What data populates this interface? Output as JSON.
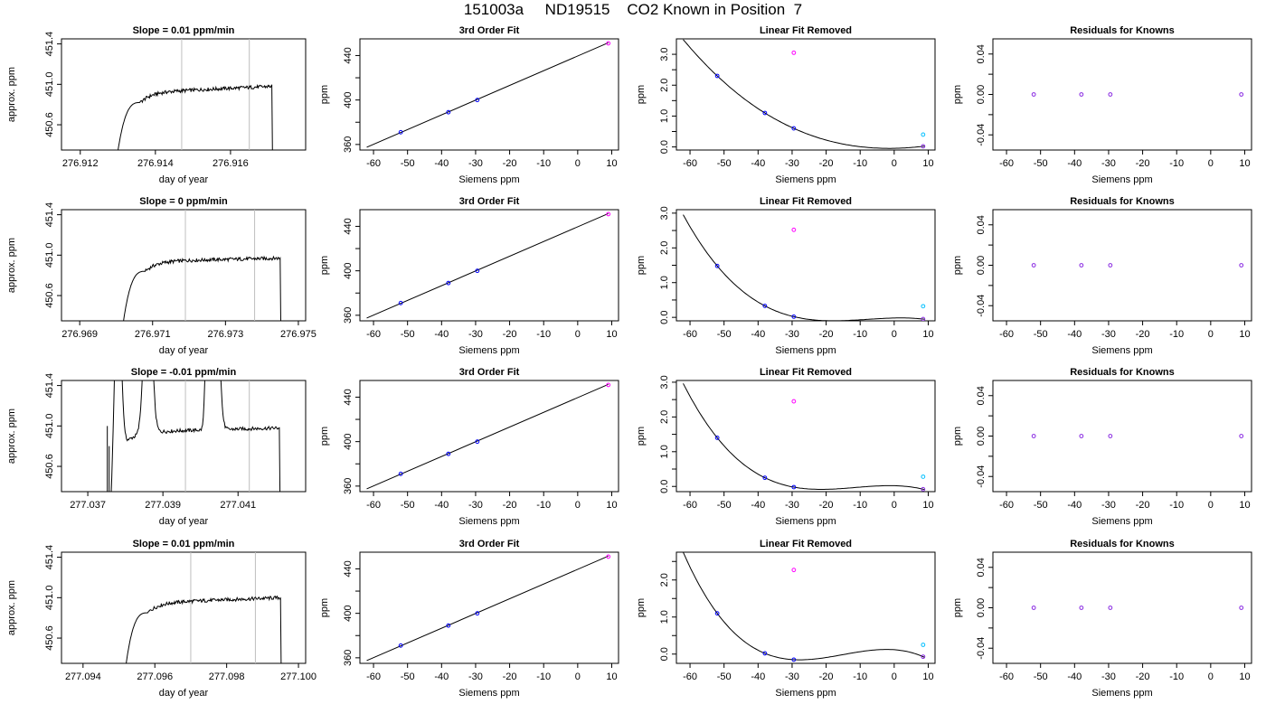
{
  "title": "151003a     ND19515    CO2 Known in Position  7",
  "colors": {
    "line": "#000000",
    "vline": "#bebebe",
    "point_blue": "#0000ff",
    "point_magenta": "#ff00ff",
    "point_cyan": "#00bfff",
    "point_purple": "#8a2be2"
  },
  "chart_data": [
    {
      "type": "line",
      "title": "Slope =  0.01  ppm/min",
      "xlabel": "day of year",
      "ylabel": "approx. ppm",
      "xlim": [
        276.9115,
        276.918
      ],
      "ylim": [
        450.35,
        451.45
      ],
      "xticks": [
        276.912,
        276.914,
        276.916
      ],
      "yticks": [
        450.6,
        451.0,
        451.4
      ],
      "yticks_labeled": [
        450.6,
        451.0,
        451.4
      ],
      "vlines": [
        276.9147,
        276.9165
      ],
      "shape": "plateau",
      "spikes": [],
      "t_start": 276.9129,
      "t_rise": 276.9136,
      "t_end": 276.9171,
      "plateau": 450.92,
      "plateau_end": 450.98
    },
    {
      "type": "line",
      "title": "3rd Order Fit",
      "xlabel": "Siemens ppm",
      "ylabel": "ppm",
      "xlim": [
        -64,
        12
      ],
      "ylim": [
        355,
        455
      ],
      "xticks": [
        -60,
        -50,
        -40,
        -30,
        -20,
        -10,
        0,
        10
      ],
      "yticks": [
        360,
        380,
        400,
        420,
        440
      ],
      "yticks_labeled": [
        360,
        400,
        440
      ],
      "fit": "linear",
      "fit_line": {
        "x": [
          -62,
          9
        ],
        "y": [
          357.5,
          451.5
        ]
      },
      "points": [
        {
          "x": -52,
          "y": 371,
          "color": "blue"
        },
        {
          "x": -38,
          "y": 389,
          "color": "blue"
        },
        {
          "x": -29.5,
          "y": 400,
          "color": "blue"
        },
        {
          "x": 9,
          "y": 451,
          "color": "magenta"
        }
      ]
    },
    {
      "type": "line",
      "title": "Linear Fit Removed",
      "xlabel": "Siemens ppm",
      "ylabel": "ppm",
      "xlim": [
        -64,
        12
      ],
      "ylim": [
        -0.1,
        3.5
      ],
      "xticks": [
        -60,
        -50,
        -40,
        -30,
        -20,
        -10,
        0,
        10
      ],
      "yticks": [
        0,
        0.5,
        1.0,
        1.5,
        2.0,
        2.5,
        3.0
      ],
      "yticks_labeled": [
        0.0,
        1.0,
        2.0,
        3.0
      ],
      "fit": "cubic",
      "cubic": [
        0.00262,
        0.26,
        0,
        -2e-07
      ],
      "fit_x": [
        -62,
        9
      ],
      "points": [
        {
          "x": -52,
          "y": 2.3,
          "color": "blue"
        },
        {
          "x": -38,
          "y": 1.1,
          "color": "blue"
        },
        {
          "x": -29.5,
          "y": 0.6,
          "color": "blue"
        },
        {
          "x": -29.5,
          "y": 3.05,
          "color": "magenta"
        },
        {
          "x": 8.5,
          "y": 0.4,
          "color": "cyan"
        },
        {
          "x": 8.5,
          "y": 0.02,
          "color": "purple"
        }
      ]
    },
    {
      "type": "scatter",
      "title": "Residuals for Knowns",
      "xlabel": "Siemens ppm",
      "ylabel": "ppm",
      "xlim": [
        -64,
        12
      ],
      "ylim": [
        -0.055,
        0.055
      ],
      "xticks": [
        -60,
        -50,
        -40,
        -30,
        -20,
        -10,
        0,
        10
      ],
      "yticks": [
        -0.04,
        -0.02,
        0,
        0.02,
        0.04
      ],
      "yticks_labeled": [
        -0.04,
        0.0,
        0.04
      ],
      "points": [
        {
          "x": -52,
          "y": 0,
          "color": "purple"
        },
        {
          "x": -38,
          "y": 0,
          "color": "purple"
        },
        {
          "x": -29.5,
          "y": 0,
          "color": "purple"
        },
        {
          "x": 9,
          "y": 0,
          "color": "purple"
        }
      ]
    },
    {
      "type": "line",
      "title": "Slope =  0  ppm/min",
      "xlabel": "day of year",
      "ylabel": "approx. ppm",
      "xlim": [
        276.9685,
        276.9752
      ],
      "ylim": [
        450.35,
        451.45
      ],
      "xticks": [
        276.969,
        276.971,
        276.973,
        276.975
      ],
      "yticks": [
        450.6,
        451.0,
        451.4
      ],
      "yticks_labeled": [
        450.6,
        451.0,
        451.4
      ],
      "vlines": [
        276.9719,
        276.9738
      ],
      "shape": "plateau",
      "spikes": [],
      "t_start": 276.9701,
      "t_rise": 276.9708,
      "t_end": 276.9745,
      "plateau": 450.94,
      "plateau_end": 450.97
    },
    {
      "type": "line",
      "title": "3rd Order Fit",
      "xlabel": "Siemens ppm",
      "ylabel": "ppm",
      "xlim": [
        -64,
        12
      ],
      "ylim": [
        355,
        455
      ],
      "xticks": [
        -60,
        -50,
        -40,
        -30,
        -20,
        -10,
        0,
        10
      ],
      "yticks": [
        360,
        380,
        400,
        420,
        440
      ],
      "yticks_labeled": [
        360,
        400,
        440
      ],
      "fit": "linear",
      "fit_line": {
        "x": [
          -62,
          9
        ],
        "y": [
          357.5,
          451.5
        ]
      },
      "points": [
        {
          "x": -52,
          "y": 371,
          "color": "blue"
        },
        {
          "x": -38,
          "y": 389,
          "color": "blue"
        },
        {
          "x": -29.5,
          "y": 400,
          "color": "blue"
        },
        {
          "x": 9,
          "y": 451,
          "color": "magenta"
        }
      ]
    },
    {
      "type": "line",
      "title": "Linear Fit Removed",
      "xlabel": "Siemens ppm",
      "ylabel": "ppm",
      "xlim": [
        -64,
        12
      ],
      "ylim": [
        -0.1,
        3.1
      ],
      "xticks": [
        -60,
        -50,
        -40,
        -30,
        -20,
        -10,
        0,
        10
      ],
      "yticks": [
        0,
        0.5,
        1.0,
        1.5,
        2.0,
        2.5,
        3.0
      ],
      "yticks_labeled": [
        0.0,
        1.0,
        2.0,
        3.0
      ],
      "fit": "cubic",
      "cubic": [
        -0.0008,
        0.1,
        0,
        0.00017
      ],
      "fit_x": [
        -62,
        9
      ],
      "points": [
        {
          "x": -52,
          "y": 1.48,
          "color": "blue"
        },
        {
          "x": -38,
          "y": 0.33,
          "color": "blue"
        },
        {
          "x": -29.5,
          "y": 0.02,
          "color": "blue"
        },
        {
          "x": -29.5,
          "y": 2.52,
          "color": "magenta"
        },
        {
          "x": 8.5,
          "y": 0.32,
          "color": "cyan"
        },
        {
          "x": 8.5,
          "y": -0.05,
          "color": "purple"
        }
      ]
    },
    {
      "type": "scatter",
      "title": "Residuals for Knowns",
      "xlabel": "Siemens ppm",
      "ylabel": "ppm",
      "xlim": [
        -64,
        12
      ],
      "ylim": [
        -0.055,
        0.055
      ],
      "xticks": [
        -60,
        -50,
        -40,
        -30,
        -20,
        -10,
        0,
        10
      ],
      "yticks": [
        -0.04,
        -0.02,
        0,
        0.02,
        0.04
      ],
      "yticks_labeled": [
        -0.04,
        0.0,
        0.04
      ],
      "points": [
        {
          "x": -52,
          "y": 0,
          "color": "purple"
        },
        {
          "x": -38,
          "y": 0,
          "color": "purple"
        },
        {
          "x": -29.5,
          "y": 0,
          "color": "purple"
        },
        {
          "x": 9,
          "y": 0,
          "color": "purple"
        }
      ]
    },
    {
      "type": "line",
      "title": "Slope =  -0.01  ppm/min",
      "xlabel": "day of year",
      "ylabel": "approx. ppm",
      "xlim": [
        277.0363,
        277.0428
      ],
      "ylim": [
        450.35,
        451.45
      ],
      "xticks": [
        277.037,
        277.039,
        277.041
      ],
      "yticks": [
        450.6,
        451.0,
        451.4
      ],
      "yticks_labeled": [
        450.6,
        451.0,
        451.4
      ],
      "vlines": [
        277.0396,
        277.0413
      ],
      "shape": "spiky",
      "spikes": [
        {
          "x": 277.0378,
          "w": 0.00018
        },
        {
          "x": 277.0386,
          "w": 0.00022
        },
        {
          "x": 277.0402,
          "w": 0.00012
        },
        {
          "x": 277.0404,
          "w": 0.0002
        }
      ],
      "t_start": 277.0376,
      "t_rise": 277.038,
      "t_end": 277.0421,
      "plateau": 450.94,
      "plateau_end": 450.98
    },
    {
      "type": "line",
      "title": "3rd Order Fit",
      "xlabel": "Siemens ppm",
      "ylabel": "ppm",
      "xlim": [
        -64,
        12
      ],
      "ylim": [
        355,
        455
      ],
      "xticks": [
        -60,
        -50,
        -40,
        -30,
        -20,
        -10,
        0,
        10
      ],
      "yticks": [
        360,
        380,
        400,
        420,
        440
      ],
      "yticks_labeled": [
        360,
        400,
        440
      ],
      "fit": "linear",
      "fit_line": {
        "x": [
          -62,
          9
        ],
        "y": [
          357.5,
          451.5
        ]
      },
      "points": [
        {
          "x": -52,
          "y": 371,
          "color": "blue"
        },
        {
          "x": -38,
          "y": 389,
          "color": "blue"
        },
        {
          "x": -29.5,
          "y": 400,
          "color": "blue"
        },
        {
          "x": 9,
          "y": 451,
          "color": "magenta"
        }
      ]
    },
    {
      "type": "line",
      "title": "Linear Fit Removed",
      "xlabel": "Siemens ppm",
      "ylabel": "ppm",
      "xlim": [
        -64,
        12
      ],
      "ylim": [
        -0.15,
        3.05
      ],
      "xticks": [
        -60,
        -50,
        -40,
        -30,
        -20,
        -10,
        0,
        10
      ],
      "yticks": [
        0,
        0.5,
        1.0,
        1.5,
        2.0,
        2.5,
        3.0
      ],
      "yticks_labeled": [
        0.0,
        1.0,
        2.0,
        3.0
      ],
      "fit": "cubic",
      "cubic": [
        -0.0008,
        0.1,
        0,
        0.00017
      ],
      "fit_x": [
        -62,
        9
      ],
      "points": [
        {
          "x": -52,
          "y": 1.4,
          "color": "blue"
        },
        {
          "x": -38,
          "y": 0.25,
          "color": "blue"
        },
        {
          "x": -29.5,
          "y": -0.02,
          "color": "blue"
        },
        {
          "x": -29.5,
          "y": 2.45,
          "color": "magenta"
        },
        {
          "x": 8.5,
          "y": 0.28,
          "color": "cyan"
        },
        {
          "x": 8.5,
          "y": -0.08,
          "color": "purple"
        }
      ]
    },
    {
      "type": "scatter",
      "title": "Residuals for Knowns",
      "xlabel": "Siemens ppm",
      "ylabel": "ppm",
      "xlim": [
        -64,
        12
      ],
      "ylim": [
        -0.055,
        0.055
      ],
      "xticks": [
        -60,
        -50,
        -40,
        -30,
        -20,
        -10,
        0,
        10
      ],
      "yticks": [
        -0.04,
        -0.02,
        0,
        0.02,
        0.04
      ],
      "yticks_labeled": [
        -0.04,
        0.0,
        0.04
      ],
      "points": [
        {
          "x": -52,
          "y": 0,
          "color": "purple"
        },
        {
          "x": -38,
          "y": 0,
          "color": "purple"
        },
        {
          "x": -29.5,
          "y": 0,
          "color": "purple"
        },
        {
          "x": 9,
          "y": 0,
          "color": "purple"
        }
      ]
    },
    {
      "type": "line",
      "title": "Slope =  0.01  ppm/min",
      "xlabel": "day of year",
      "ylabel": "approx. ppm",
      "xlim": [
        277.0934,
        277.1002
      ],
      "ylim": [
        450.35,
        451.45
      ],
      "xticks": [
        277.094,
        277.096,
        277.098,
        277.1
      ],
      "yticks": [
        450.6,
        451.0,
        451.4
      ],
      "yticks_labeled": [
        450.6,
        451.0,
        451.4
      ],
      "vlines": [
        277.097,
        277.0988
      ],
      "shape": "plateau",
      "spikes": [],
      "t_start": 277.0951,
      "t_rise": 277.0958,
      "t_end": 277.0995,
      "plateau": 450.95,
      "plateau_end": 451.0
    },
    {
      "type": "line",
      "title": "3rd Order Fit",
      "xlabel": "Siemens ppm",
      "ylabel": "ppm",
      "xlim": [
        -64,
        12
      ],
      "ylim": [
        355,
        455
      ],
      "xticks": [
        -60,
        -50,
        -40,
        -30,
        -20,
        -10,
        0,
        10
      ],
      "yticks": [
        360,
        380,
        400,
        420,
        440
      ],
      "yticks_labeled": [
        360,
        400,
        440
      ],
      "fit": "linear",
      "fit_line": {
        "x": [
          -62,
          9
        ],
        "y": [
          357.5,
          451.5
        ]
      },
      "points": [
        {
          "x": -52,
          "y": 371,
          "color": "blue"
        },
        {
          "x": -38,
          "y": 389,
          "color": "blue"
        },
        {
          "x": -29.5,
          "y": 400,
          "color": "blue"
        },
        {
          "x": 9,
          "y": 451,
          "color": "magenta"
        }
      ]
    },
    {
      "type": "line",
      "title": "Linear Fit Removed",
      "xlabel": "Siemens ppm",
      "ylabel": "ppm",
      "xlim": [
        -64,
        12
      ],
      "ylim": [
        -0.25,
        2.75
      ],
      "xticks": [
        -60,
        -50,
        -40,
        -30,
        -20,
        -10,
        0,
        10
      ],
      "yticks": [
        0,
        0.5,
        1.0,
        1.5,
        2.0,
        2.5
      ],
      "yticks_labeled": [
        0.0,
        1.0,
        2.0
      ],
      "fit": "cubic",
      "cubic": [
        -0.0009,
        0.09,
        0,
        0.00016
      ],
      "fit_x": [
        -62,
        9
      ],
      "points": [
        {
          "x": -52,
          "y": 1.1,
          "color": "blue"
        },
        {
          "x": -38,
          "y": 0.02,
          "color": "blue"
        },
        {
          "x": -29.5,
          "y": -0.15,
          "color": "blue"
        },
        {
          "x": -29.5,
          "y": 2.27,
          "color": "magenta"
        },
        {
          "x": 8.5,
          "y": 0.25,
          "color": "cyan"
        },
        {
          "x": 8.5,
          "y": -0.07,
          "color": "purple"
        }
      ]
    },
    {
      "type": "scatter",
      "title": "Residuals for Knowns",
      "xlabel": "Siemens ppm",
      "ylabel": "ppm",
      "xlim": [
        -64,
        12
      ],
      "ylim": [
        -0.055,
        0.055
      ],
      "xticks": [
        -60,
        -50,
        -40,
        -30,
        -20,
        -10,
        0,
        10
      ],
      "yticks": [
        -0.04,
        -0.02,
        0,
        0.02,
        0.04
      ],
      "yticks_labeled": [
        -0.04,
        0.0,
        0.04
      ],
      "points": [
        {
          "x": -52,
          "y": 0,
          "color": "purple"
        },
        {
          "x": -38,
          "y": 0,
          "color": "purple"
        },
        {
          "x": -29.5,
          "y": 0,
          "color": "purple"
        },
        {
          "x": 9,
          "y": 0,
          "color": "purple"
        }
      ]
    }
  ]
}
